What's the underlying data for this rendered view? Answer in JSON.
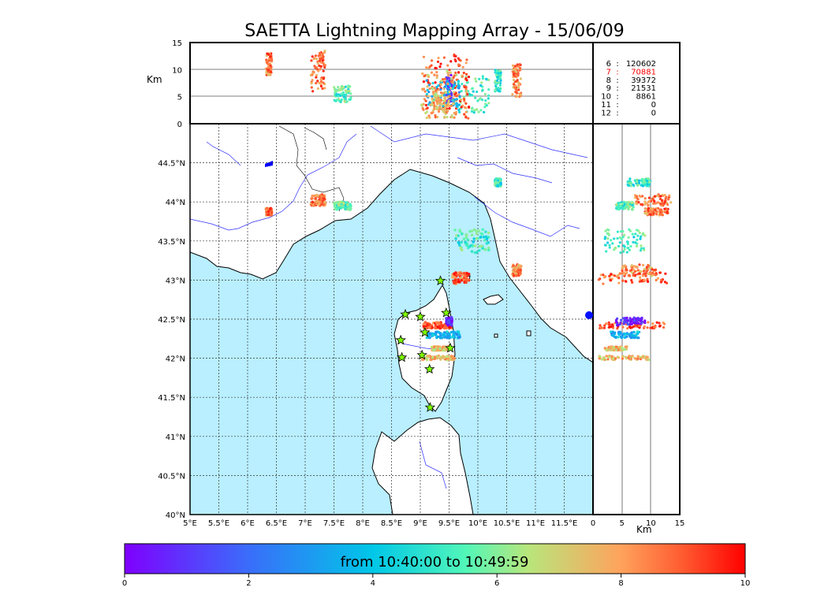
{
  "chart_data": {
    "type": "scatter",
    "title": "SAETTA Lightning Mapping Array - 15/06/09",
    "colorbar_label": "from 10:40:00 to 10:49:59",
    "colorbar_ticks": [
      "0",
      "2",
      "4",
      "6",
      "8",
      "10"
    ],
    "colorbar_range": [
      0,
      10
    ],
    "altitude_unit": "Km",
    "map": {
      "lon_range": [
        5,
        12
      ],
      "lat_range": [
        40,
        45
      ],
      "lon_ticks": [
        "5°E",
        "5.5°E",
        "6°E",
        "6.5°E",
        "7°E",
        "7.5°E",
        "8°E",
        "8.5°E",
        "9°E",
        "9.5°E",
        "10°E",
        "10.5°E",
        "11°E",
        "11.5°E"
      ],
      "lat_ticks": [
        "40°N",
        "40.5°N",
        "41°N",
        "41.5°N",
        "42°N",
        "42.5°N",
        "43°N",
        "43.5°N",
        "44°N",
        "44.5°N"
      ],
      "grid": true,
      "sea_color": "#b9efff"
    },
    "top_panel": {
      "alt_range": [
        0,
        15
      ],
      "alt_ticks": [
        "0",
        "5",
        "10",
        "15"
      ]
    },
    "side_panel": {
      "alt_range": [
        0,
        15
      ],
      "alt_ticks": [
        "0",
        "5",
        "10",
        "15"
      ]
    },
    "station_counts": [
      {
        "stations": "6",
        "count": "120602",
        "color": "#000000"
      },
      {
        "stations": "7",
        "count": "70881",
        "color": "#ff0000"
      },
      {
        "stations": "8",
        "count": "39372",
        "color": "#000000"
      },
      {
        "stations": "9",
        "count": "21531",
        "color": "#000000"
      },
      {
        "stations": "10",
        "count": "8861",
        "color": "#000000"
      },
      {
        "stations": "11",
        "count": "0",
        "color": "#000000"
      },
      {
        "stations": "12",
        "count": "0",
        "color": "#000000"
      }
    ],
    "stations": [
      {
        "lon": 9.35,
        "lat": 42.99
      },
      {
        "lon": 8.74,
        "lat": 42.56
      },
      {
        "lon": 9.0,
        "lat": 42.53
      },
      {
        "lon": 9.45,
        "lat": 42.58
      },
      {
        "lon": 9.08,
        "lat": 42.33
      },
      {
        "lon": 8.66,
        "lat": 42.23
      },
      {
        "lon": 9.03,
        "lat": 42.04
      },
      {
        "lon": 8.68,
        "lat": 42.01
      },
      {
        "lon": 9.52,
        "lat": 42.13
      },
      {
        "lon": 9.16,
        "lat": 41.86
      },
      {
        "lon": 9.17,
        "lat": 41.37
      }
    ],
    "clusters": [
      {
        "lon": [
          6.32,
          6.42
        ],
        "lat": [
          43.83,
          43.92
        ],
        "alt": [
          9,
          13
        ],
        "t": 8.5
      },
      {
        "lon": [
          7.1,
          7.35
        ],
        "lat": [
          43.95,
          44.1
        ],
        "alt": [
          6,
          13.5
        ],
        "t": 8.6
      },
      {
        "lon": [
          7.5,
          7.8
        ],
        "lat": [
          43.9,
          44.0
        ],
        "alt": [
          4,
          7
        ],
        "t": 5.5
      },
      {
        "lon": [
          10.3,
          10.4
        ],
        "lat": [
          44.2,
          44.3
        ],
        "alt": [
          6,
          10
        ],
        "t": 5.0
      },
      {
        "lon": [
          9.6,
          10.2
        ],
        "lat": [
          43.35,
          43.65
        ],
        "alt": [
          2,
          9
        ],
        "t": 5.2
      },
      {
        "lon": [
          9.55,
          9.85
        ],
        "lat": [
          42.95,
          43.1
        ],
        "alt": [
          1,
          13
        ],
        "t": 8.8
      },
      {
        "lon": [
          10.6,
          10.75
        ],
        "lat": [
          43.05,
          43.2
        ],
        "alt": [
          5,
          11
        ],
        "t": 8.3
      },
      {
        "lon": [
          9.05,
          9.55
        ],
        "lat": [
          42.38,
          42.46
        ],
        "alt": [
          1,
          12.5
        ],
        "t": 9.1
      },
      {
        "lon": [
          9.45,
          9.55
        ],
        "lat": [
          42.42,
          42.52
        ],
        "alt": [
          4,
          9
        ],
        "t": 0.6
      },
      {
        "lon": [
          9.1,
          9.7
        ],
        "lat": [
          42.26,
          42.34
        ],
        "alt": [
          3,
          8
        ],
        "t": 3.6
      },
      {
        "lon": [
          9.2,
          9.5
        ],
        "lat": [
          42.1,
          42.15
        ],
        "alt": [
          2,
          6
        ],
        "t": 7.4
      },
      {
        "lon": [
          9.0,
          9.6
        ],
        "lat": [
          41.98,
          42.03
        ],
        "alt": [
          1,
          10
        ],
        "t": 7.6
      }
    ]
  }
}
